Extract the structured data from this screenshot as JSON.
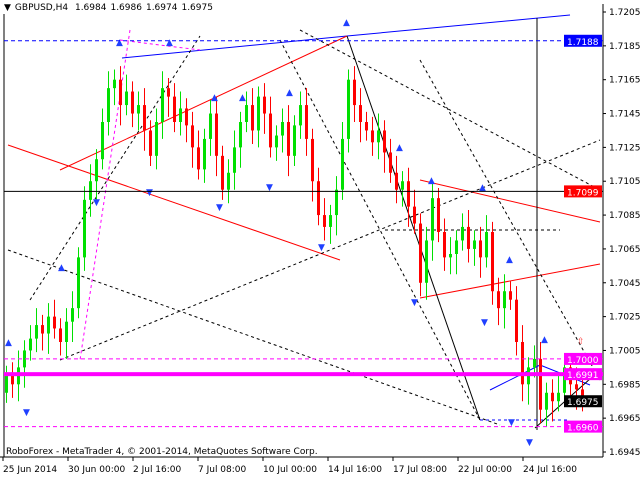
{
  "header": {
    "symbol": "GBPUSD,H4",
    "open": "1.6984",
    "high": "1.6986",
    "low": "1.6974",
    "close": "1.6975"
  },
  "footer": {
    "copyright": "RoboForex - MetaTrader 4, © 2001-2014, MetaQuotes Software Corp."
  },
  "colors": {
    "bull": "#00e000",
    "bear": "#ff0000",
    "level_blue": "#0000ff",
    "level_red": "#ff0000",
    "level_magenta": "#ff00ff",
    "current": "#000000"
  },
  "chart_data": {
    "type": "candlestick",
    "title": "GBPUSD,H4",
    "ylim": [
      1.6935,
      1.7215
    ],
    "y_ticks": [
      "1.7205",
      "1.7185",
      "1.7165",
      "1.7145",
      "1.7125",
      "1.7105",
      "1.7085",
      "1.7065",
      "1.7045",
      "1.7025",
      "1.7005",
      "1.6985",
      "1.6965",
      "1.6945"
    ],
    "x_ticks": [
      "25 Jun 2014",
      "30 Jun 00:00",
      "2 Jul 16:00",
      "7 Jul 08:00",
      "10 Jul 00:00",
      "14 Jul 16:00",
      "17 Jul 08:00",
      "22 Jul 00:00",
      "24 Jul 16:00"
    ],
    "first_open": 1.698,
    "closes": [
      1.699,
      1.6985,
      1.6995,
      1.7005,
      1.7012,
      1.702,
      1.7015,
      1.7025,
      1.7018,
      1.701,
      1.7022,
      1.703,
      1.706,
      1.7094,
      1.7105,
      1.7118,
      1.714,
      1.716,
      1.7165,
      1.715,
      1.7158,
      1.7145,
      1.715,
      1.7135,
      1.712,
      1.714,
      1.716,
      1.7155,
      1.714,
      1.7148,
      1.7138,
      1.7125,
      1.7112,
      1.713,
      1.7145,
      1.712,
      1.71,
      1.711,
      1.7125,
      1.714,
      1.715,
      1.7135,
      1.7155,
      1.7145,
      1.7125,
      1.7132,
      1.714,
      1.712,
      1.7138,
      1.715,
      1.713,
      1.7105,
      1.7085,
      1.7078,
      1.7085,
      1.71,
      1.713,
      1.7165,
      1.715,
      1.714,
      1.7135,
      1.7128,
      1.7135,
      1.7122,
      1.711,
      1.71,
      1.7105,
      1.709,
      1.708,
      1.7045,
      1.707,
      1.7095,
      1.7075,
      1.706,
      1.7062,
      1.707,
      1.7078,
      1.7065,
      1.707,
      1.706,
      1.7075,
      1.704,
      1.703,
      1.704,
      1.7035,
      1.701,
      1.6985,
      1.6995,
      1.7,
      1.697,
      1.698,
      1.6975,
      1.698,
      1.6995,
      1.6985,
      1.6982,
      1.6975
    ],
    "levels": [
      {
        "label": "1.7188",
        "price": 1.7188,
        "color": "#0000ff",
        "style": "dashed"
      },
      {
        "label": "1.7099",
        "price": 1.7099,
        "color": "#ff0000",
        "style": "solid"
      },
      {
        "label": "1.7000",
        "price": 1.7,
        "color": "#ff00ff",
        "style": "dashed"
      },
      {
        "label": "1.6991",
        "price": 1.6991,
        "color": "#ff00ff",
        "style": "thick"
      },
      {
        "label": "1.6975",
        "price": 1.6975,
        "color": "#000000",
        "style": "current"
      },
      {
        "label": "1.6960",
        "price": 1.696,
        "color": "#ff00ff",
        "style": "dashed"
      }
    ],
    "grid": false
  }
}
